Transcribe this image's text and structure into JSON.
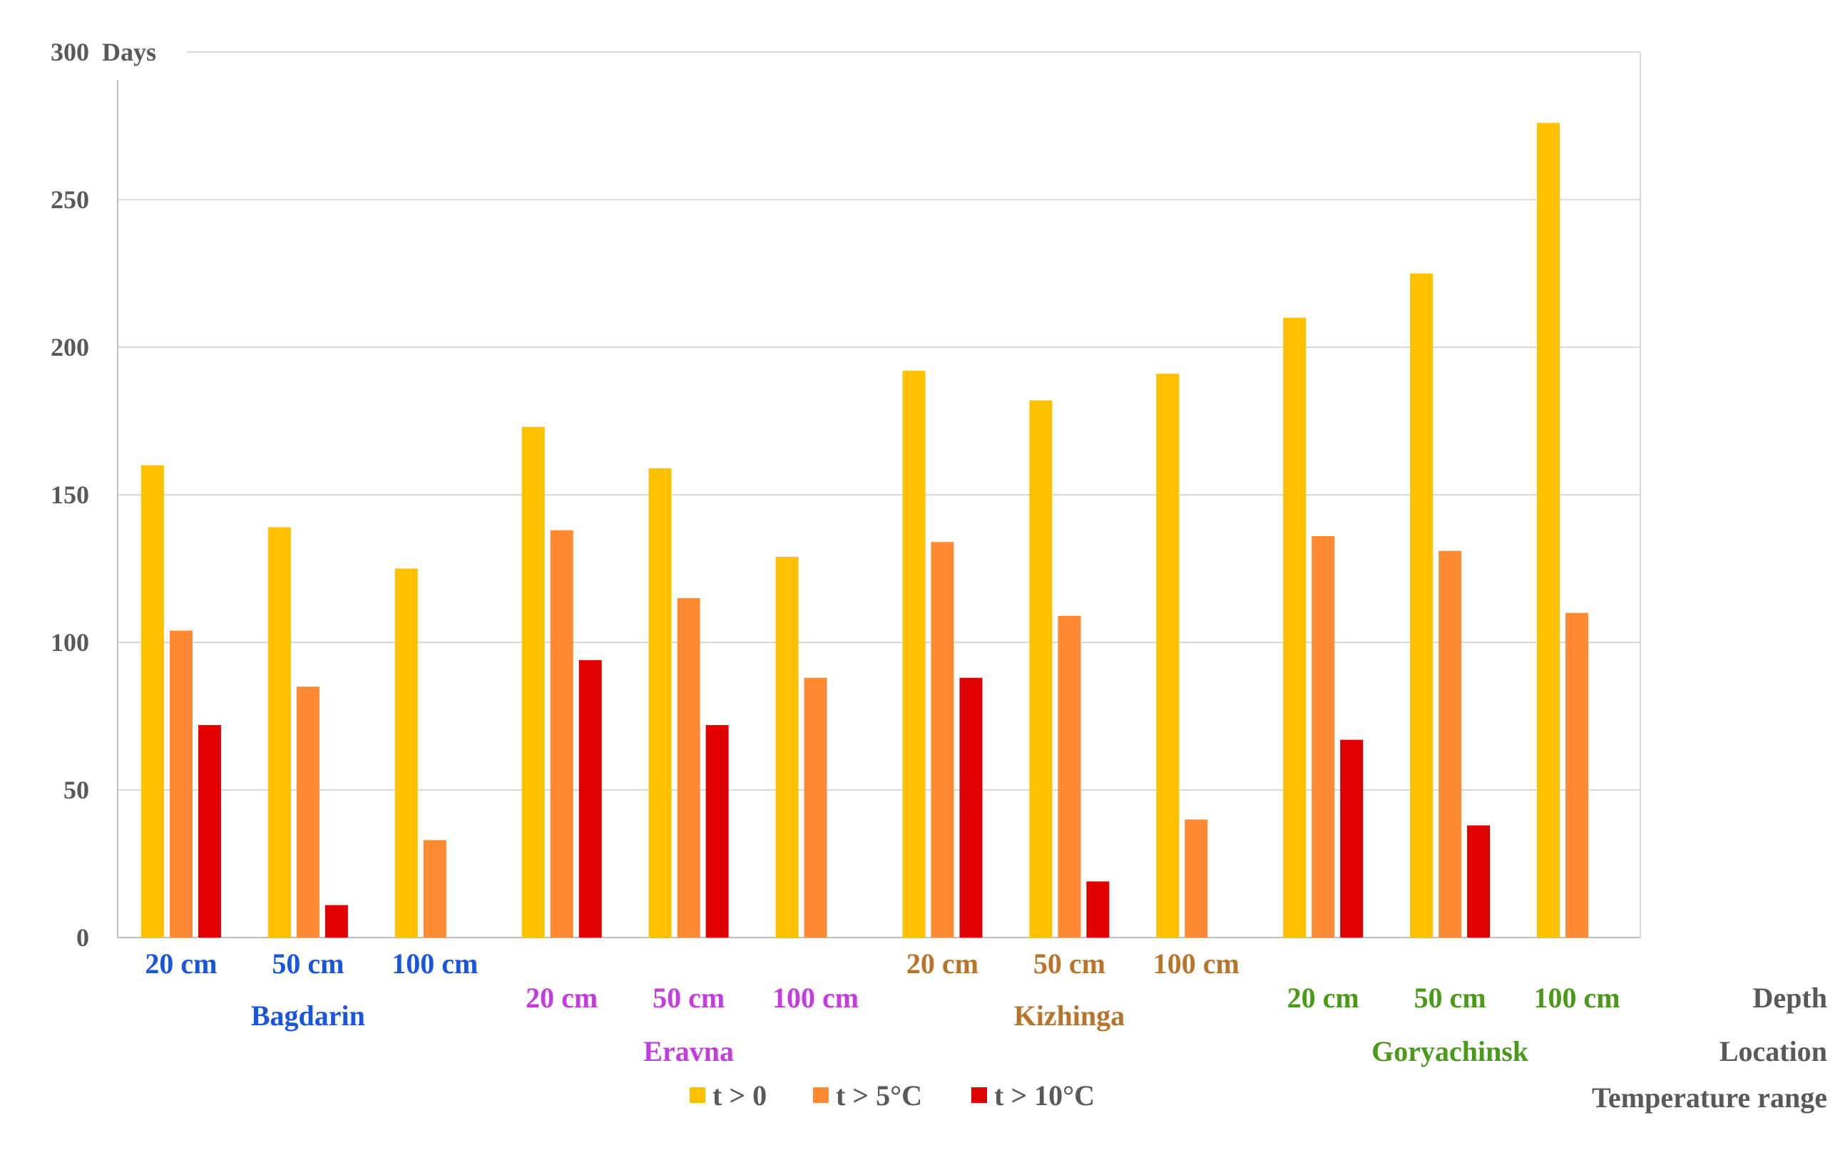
{
  "chart_data": {
    "type": "bar",
    "y_unit": "Days",
    "ylim": [
      0,
      300
    ],
    "yticks": [
      0,
      50,
      100,
      150,
      200,
      250,
      300
    ],
    "grid": true,
    "legend_position": "bottom-center",
    "row_labels": {
      "depth": "Depth",
      "location": "Location",
      "temperature_range": "Temperature range"
    },
    "series": [
      {
        "name": "t > 0",
        "color": "#FFC000"
      },
      {
        "name": "t > 5°C",
        "color": "#FF8A33"
      },
      {
        "name": "t > 10°C",
        "color": "#E00000"
      }
    ],
    "groups": [
      {
        "location": "Bagdarin",
        "color": "#1a56db",
        "depths": [
          {
            "label": "20 cm",
            "values": [
              160,
              104,
              72
            ]
          },
          {
            "label": "50 cm",
            "values": [
              139,
              85,
              11
            ]
          },
          {
            "label": "100 cm",
            "values": [
              125,
              33,
              null
            ]
          }
        ]
      },
      {
        "location": "Eravna",
        "color": "#c43ce0",
        "depths": [
          {
            "label": "20 cm",
            "values": [
              173,
              138,
              94
            ]
          },
          {
            "label": "50 cm",
            "values": [
              159,
              115,
              72
            ]
          },
          {
            "label": "100 cm",
            "values": [
              129,
              88,
              null
            ]
          }
        ]
      },
      {
        "location": "Kizhinga",
        "color": "#b8742a",
        "depths": [
          {
            "label": "20 cm",
            "values": [
              192,
              134,
              88
            ]
          },
          {
            "label": "50 cm",
            "values": [
              182,
              109,
              19
            ]
          },
          {
            "label": "100 cm",
            "values": [
              191,
              40,
              null
            ]
          }
        ]
      },
      {
        "location": "Goryachinsk",
        "color": "#4a9a1a",
        "depths": [
          {
            "label": "20 cm",
            "values": [
              210,
              136,
              67
            ]
          },
          {
            "label": "50 cm",
            "values": [
              225,
              131,
              38
            ]
          },
          {
            "label": "100 cm",
            "values": [
              276,
              110,
              null
            ]
          }
        ]
      }
    ]
  }
}
